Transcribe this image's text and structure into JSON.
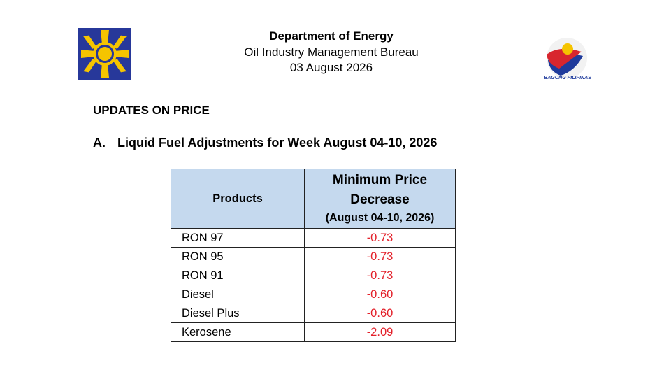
{
  "header": {
    "title": "Department of Energy",
    "bureau": "Oil Industry Management Bureau",
    "date": "03 August 2026",
    "right_logo_text": "BAGONG PILIPINAS"
  },
  "section": {
    "heading": "UPDATES ON PRICE",
    "item_letter": "A.",
    "item_title": "Liquid Fuel Adjustments for Week August 04-10, 2026"
  },
  "table": {
    "header": {
      "product": "Products",
      "price_lines": [
        "Minimum Price",
        "Decrease",
        "(August 04-10, 2026)"
      ]
    },
    "rows": [
      [
        "RON 97",
        "-0.73"
      ],
      [
        "RON 95",
        "-0.73"
      ],
      [
        "RON 91",
        "-0.73"
      ],
      [
        "Diesel",
        "-0.60"
      ],
      [
        "Diesel Plus",
        "-0.60"
      ],
      [
        "Kerosene",
        "-2.09"
      ]
    ]
  }
}
